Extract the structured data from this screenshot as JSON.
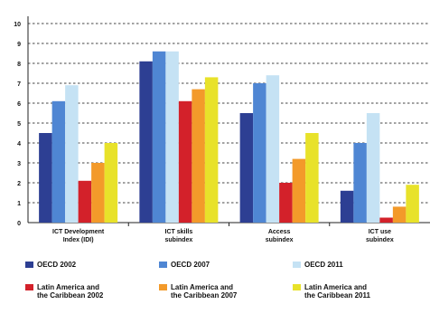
{
  "chart_data": {
    "type": "bar",
    "categories": [
      "ICT Development\nIndex (IDI)",
      "ICT skills\nsubindex",
      "Access\nsubindex",
      "ICT use\nsubindex"
    ],
    "series": [
      {
        "name": "OECD 2002",
        "color": "#2d3f93",
        "values": [
          4.5,
          8.1,
          5.5,
          1.6
        ]
      },
      {
        "name": "OECD 2007",
        "color": "#4f86d3",
        "values": [
          6.1,
          8.6,
          7.0,
          4.0
        ]
      },
      {
        "name": "OECD 2011",
        "color": "#c5e2f4",
        "values": [
          6.9,
          8.6,
          7.4,
          5.5
        ]
      },
      {
        "name": "Latin America and\nthe Caribbean 2002",
        "color": "#d3212a",
        "values": [
          2.1,
          6.1,
          2.0,
          0.25
        ]
      },
      {
        "name": "Latin America and\nthe Caribbean 2007",
        "color": "#f39a2a",
        "values": [
          3.0,
          6.7,
          3.2,
          0.8
        ]
      },
      {
        "name": "Latin America and\nthe Caribbean 2011",
        "color": "#e8e22a",
        "values": [
          4.0,
          7.3,
          4.5,
          1.9
        ]
      }
    ],
    "y_ticks": [
      "0",
      "1",
      "2",
      "3",
      "4",
      "5",
      "6",
      "7",
      "8",
      "9",
      "10"
    ],
    "ylim": [
      0,
      10
    ],
    "grid": true,
    "legend_position": "bottom"
  }
}
